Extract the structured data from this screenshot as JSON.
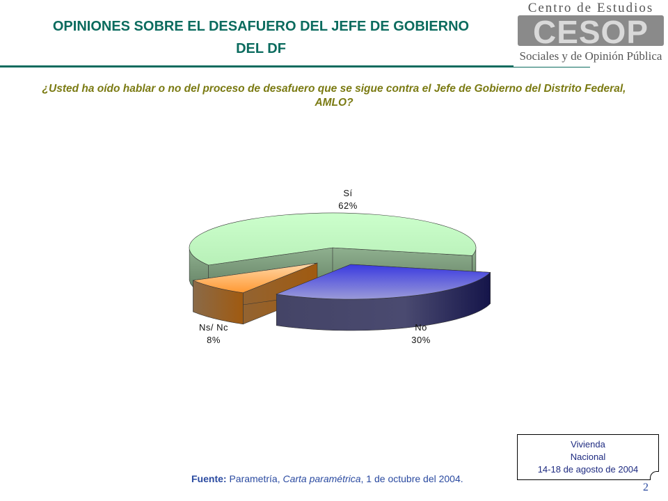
{
  "slide": {
    "title": "OPINIONES SOBRE EL DESAFUERO DEL JEFE DE GOBIERNO DEL DF",
    "question": "¿Usted ha oído hablar o no del proceso de desafuero que se sigue contra el Jefe de Gobierno del Distrito Federal, AMLO?",
    "page_number": "2"
  },
  "logo": {
    "line1": "Centro de Estudios",
    "mark": "CESOP",
    "line2": "Sociales y de Opinión Pública"
  },
  "source": {
    "label": "Fuente:",
    "text1": " Parametría, ",
    "italic": "Carta paramétrica",
    "text2": ", 1 de octubre del 2004."
  },
  "note": {
    "line1": "Vivienda",
    "line2": "Nacional",
    "line3": "14-18 de agosto de 2004"
  },
  "colors": {
    "title": "#0b6b5e",
    "question": "#7a7a12",
    "si": "#ccffcc",
    "no": "#3333cc",
    "nsnc": "#ff9933"
  },
  "chart_data": {
    "type": "pie",
    "style": "3d-exploded",
    "slices": [
      {
        "name": "Sí",
        "value": 62,
        "label": "62%",
        "color": "#ccffcc"
      },
      {
        "name": "No",
        "value": 30,
        "label": "30%",
        "color": "#3333cc"
      },
      {
        "name": "Ns/ Nc",
        "value": 8,
        "label": "8%",
        "color": "#ff9933"
      }
    ]
  }
}
